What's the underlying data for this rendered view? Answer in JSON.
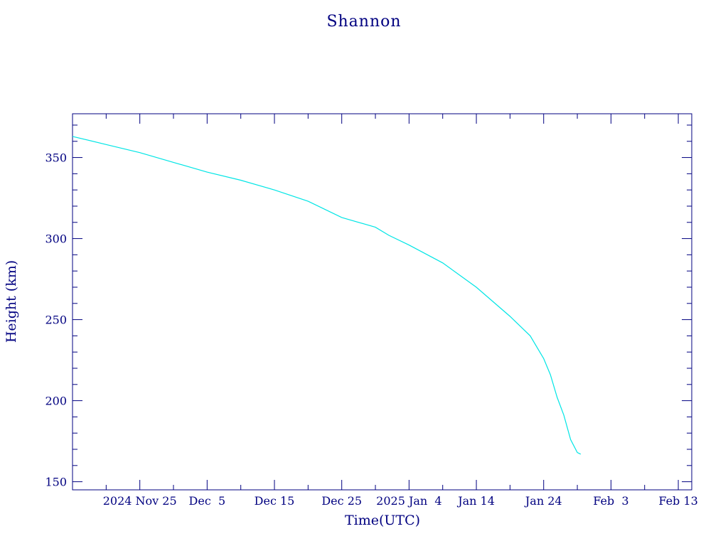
{
  "chart_data": {
    "type": "line",
    "title": "Shannon",
    "xlabel": "Time(UTC)",
    "ylabel": "Height (km)",
    "ylim": [
      145,
      377
    ],
    "xlim": [
      "2024-11-15",
      "2025-02-15"
    ],
    "yticks": [
      150,
      200,
      250,
      300,
      350
    ],
    "xticks": [
      {
        "date": "2024-11-25",
        "label": "2024 Nov 25"
      },
      {
        "date": "2024-12-05",
        "label": "Dec  5"
      },
      {
        "date": "2024-12-15",
        "label": "Dec 15"
      },
      {
        "date": "2024-12-25",
        "label": "Dec 25"
      },
      {
        "date": "2025-01-04",
        "label": "2025 Jan  4"
      },
      {
        "date": "2025-01-14",
        "label": "Jan 14"
      },
      {
        "date": "2025-01-24",
        "label": "Jan 24"
      },
      {
        "date": "2025-02-03",
        "label": "Feb  3"
      },
      {
        "date": "2025-02-13",
        "label": "Feb 13"
      }
    ],
    "grid": false,
    "series": [
      {
        "color": "#00e5e5",
        "x": [
          "2024-11-15",
          "2024-11-20",
          "2024-11-25",
          "2024-11-30",
          "2024-12-05",
          "2024-12-10",
          "2024-12-15",
          "2024-12-20",
          "2024-12-25",
          "2024-12-30",
          "2025-01-01",
          "2025-01-04",
          "2025-01-09",
          "2025-01-14",
          "2025-01-19",
          "2025-01-22",
          "2025-01-24",
          "2025-01-25",
          "2025-01-26",
          "2025-01-27",
          "2025-01-28",
          "2025-01-29",
          "2025-01-29T12:00"
        ],
        "y": [
          363,
          358,
          353,
          347,
          341,
          336,
          330,
          323,
          313,
          307,
          302,
          296,
          285,
          270,
          252,
          240,
          226,
          216,
          202,
          191,
          176,
          168,
          167
        ]
      }
    ]
  }
}
